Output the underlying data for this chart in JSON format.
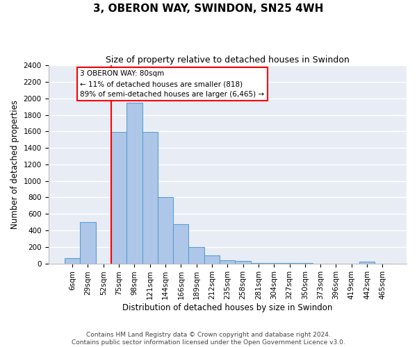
{
  "title": "3, OBERON WAY, SWINDON, SN25 4WH",
  "subtitle": "Size of property relative to detached houses in Swindon",
  "xlabel": "Distribution of detached houses by size in Swindon",
  "ylabel": "Number of detached properties",
  "footer_line1": "Contains HM Land Registry data © Crown copyright and database right 2024.",
  "footer_line2": "Contains public sector information licensed under the Open Government Licence v3.0.",
  "categories": [
    "6sqm",
    "29sqm",
    "52sqm",
    "75sqm",
    "98sqm",
    "121sqm",
    "144sqm",
    "166sqm",
    "189sqm",
    "212sqm",
    "235sqm",
    "258sqm",
    "281sqm",
    "304sqm",
    "327sqm",
    "350sqm",
    "373sqm",
    "396sqm",
    "419sqm",
    "442sqm",
    "465sqm"
  ],
  "values": [
    60,
    500,
    0,
    1590,
    1950,
    1590,
    800,
    480,
    200,
    95,
    35,
    28,
    5,
    5,
    5,
    5,
    0,
    0,
    0,
    20,
    0
  ],
  "bar_color": "#aec6e8",
  "bar_edge_color": "#5a9fd4",
  "bar_linewidth": 0.8,
  "red_line_x": 2.5,
  "annotation_text": "3 OBERON WAY: 80sqm\n← 11% of detached houses are smaller (818)\n89% of semi-detached houses are larger (6,465) →",
  "annotation_box_color": "white",
  "annotation_box_edge": "red",
  "ylim": [
    0,
    2400
  ],
  "yticks": [
    0,
    200,
    400,
    600,
    800,
    1000,
    1200,
    1400,
    1600,
    1800,
    2000,
    2200,
    2400
  ],
  "background_color": "#e8edf5",
  "grid_color": "white",
  "title_fontsize": 11,
  "subtitle_fontsize": 9,
  "tick_fontsize": 7.5,
  "ylabel_fontsize": 8.5,
  "xlabel_fontsize": 8.5,
  "footer_fontsize": 6.5
}
